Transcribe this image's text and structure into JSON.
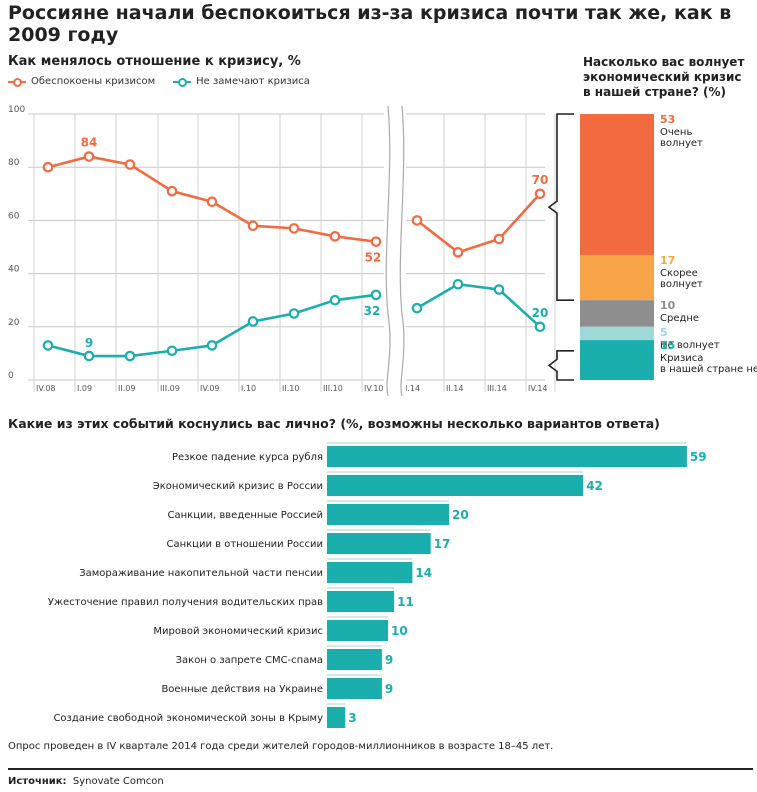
{
  "title": "Россияне начали беспокоиться из-за кризиса почти так же, как в 2009 году",
  "colors": {
    "orange": "#F26B40",
    "teal": "#1AAFAD",
    "grid": "#bfbfbf",
    "gray": "#8E8E8E",
    "light_orange": "#F8A54A",
    "light_teal": "#9ED8D7"
  },
  "chart_data": [
    {
      "type": "line",
      "title": "Как менялось отношение к кризису, %",
      "ylim": [
        0,
        100
      ],
      "yticks": [
        "100",
        "80",
        "60",
        "40",
        "20",
        "0"
      ],
      "categories": [
        "IV.08",
        "I.09",
        "II.09",
        "III.09",
        "IV.09",
        "I.10",
        "II.10",
        "III.10",
        "IV.10",
        "I.14",
        "II.14",
        "III.14",
        "IV.14"
      ],
      "series": [
        {
          "name": "Обеспокоены кризисом",
          "values": [
            80,
            84,
            81,
            71,
            67,
            58,
            57,
            54,
            52,
            60,
            48,
            53,
            70
          ],
          "labels": {
            "1": "84",
            "8": "52",
            "12": "70"
          }
        },
        {
          "name": "Не замечают кризиса",
          "values": [
            13,
            9,
            9,
            11,
            13,
            22,
            25,
            30,
            32,
            27,
            36,
            34,
            20
          ],
          "labels": {
            "1": "9",
            "8": "32",
            "12": "20"
          }
        }
      ]
    },
    {
      "type": "stacked-bar",
      "title": "Насколько вас волнует экономический кризис в нашей стране? (%)",
      "segments": [
        {
          "value": 53,
          "label": "Очень волнует",
          "value_text": "53"
        },
        {
          "value": 17,
          "label": "Скорее волнует",
          "value_text": "17"
        },
        {
          "value": 10,
          "label": "Средне",
          "value_text": "10"
        },
        {
          "value": 5,
          "label": "Не волнует",
          "value_text": "5"
        },
        {
          "value": 15,
          "label": "Кризиса в нашей стране нет",
          "value_text": "15"
        }
      ]
    },
    {
      "type": "bar",
      "title": "Какие из этих событий коснулись вас лично? (%, возможны несколько вариантов ответа)",
      "categories": [
        "Резкое падение курса рубля",
        "Экономический кризис в России",
        "Санкции, введенные Россией",
        "Санкции в отношении России",
        "Замораживание накопительной части пенсии",
        "Ужесточение правил получения водительских прав",
        "Мировой экономический кризис",
        "Закон о запрете СМС-спама",
        "Военные действия на Украине",
        "Создание свободной экономической зоны в Крыму"
      ],
      "values": [
        59,
        42,
        20,
        17,
        14,
        11,
        10,
        9,
        9,
        3
      ]
    }
  ],
  "legend": {
    "series1": "Обеспокоены кризисом",
    "series2": "Не замечают кризиса"
  },
  "note": "Опрос проведен в IV квартале 2014 года среди жителей городов-миллионников в возрасте 18–45 лет.",
  "source": {
    "label": "Источник:",
    "name": "Synovate Comcon"
  }
}
